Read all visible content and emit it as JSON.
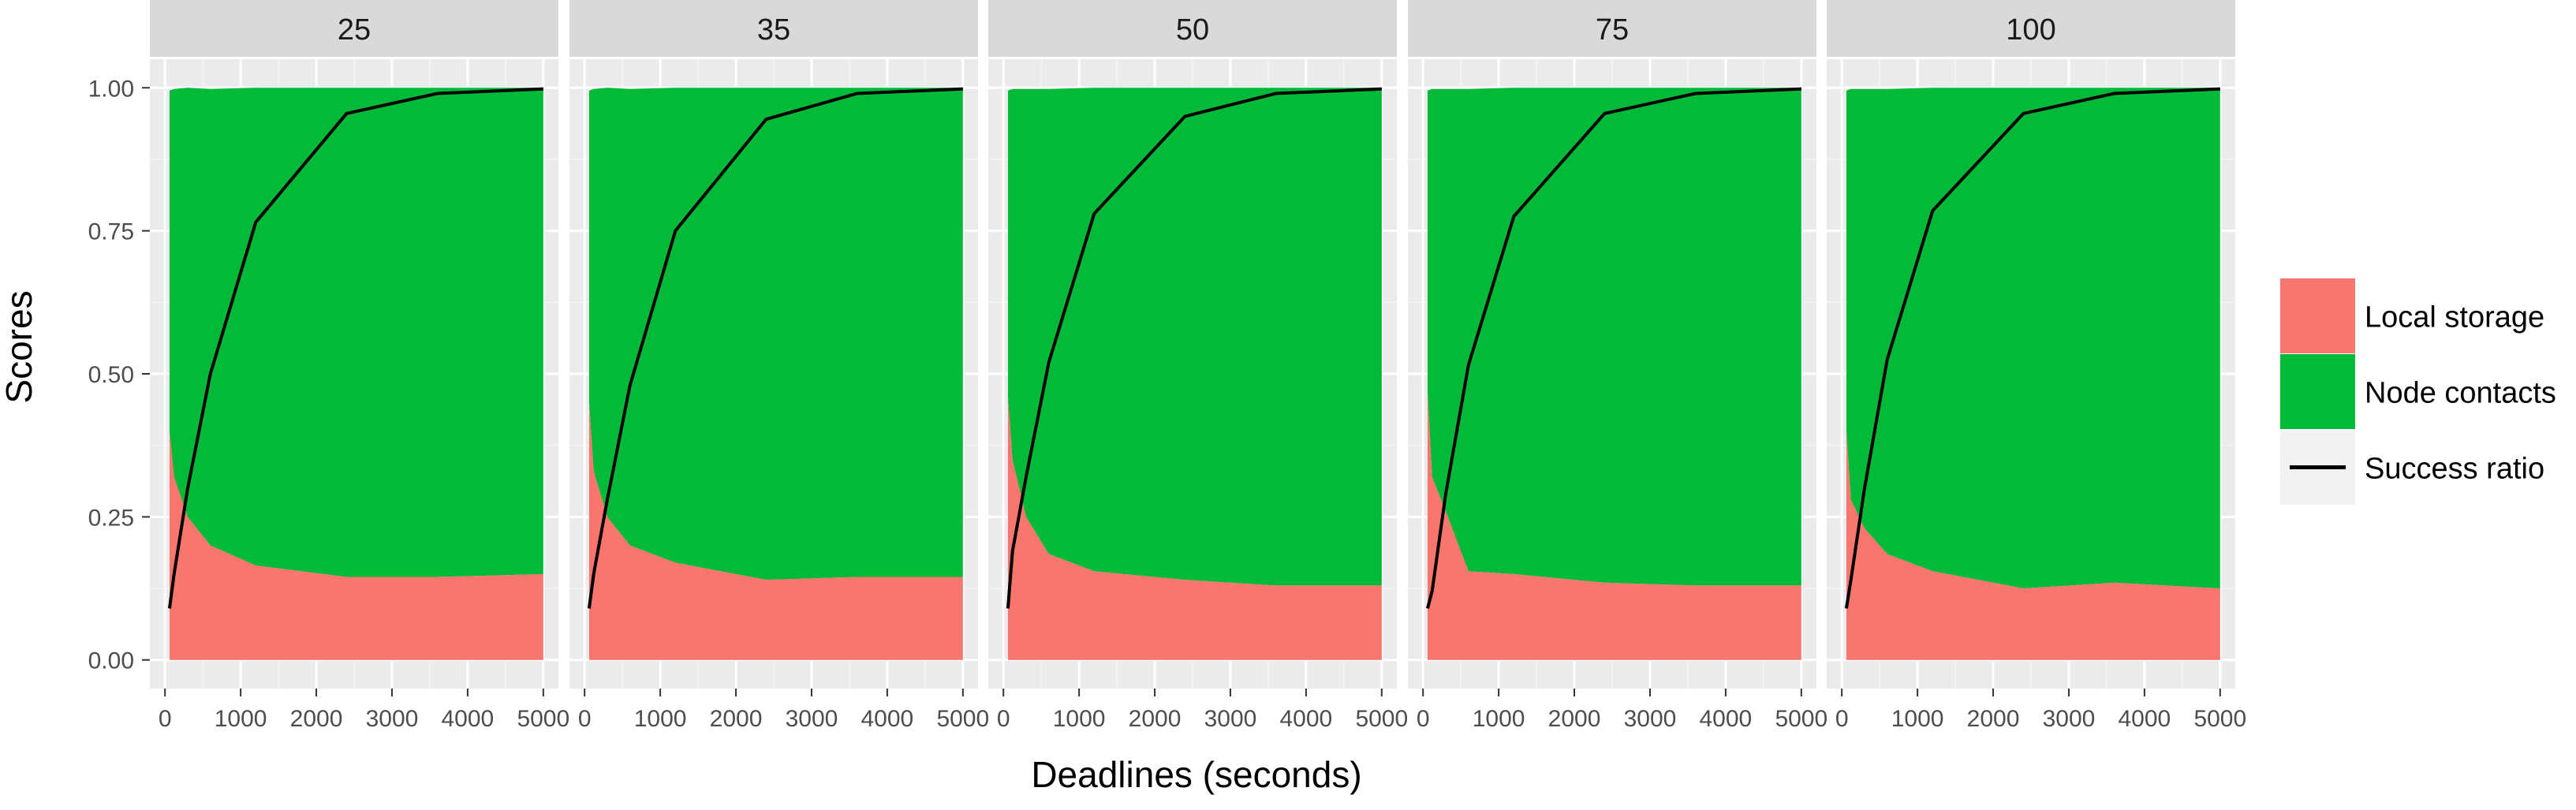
{
  "chart_data": {
    "type": "area",
    "title": "",
    "xlabel": "Deadlines (seconds)",
    "ylabel": "Scores",
    "xlim": [
      -200,
      5200
    ],
    "ylim": [
      -0.05,
      1.05
    ],
    "x_ticks": [
      0,
      1000,
      2000,
      3000,
      4000,
      5000
    ],
    "x_tick_labels": [
      "0",
      "1000",
      "2000",
      "3000",
      "4000",
      "5000"
    ],
    "y_ticks": [
      0,
      0.25,
      0.5,
      0.75,
      1.0
    ],
    "y_tick_labels": [
      "0.00",
      "0.25",
      "0.50",
      "0.75",
      "1.00"
    ],
    "grid": true,
    "legend_position": "right",
    "legend": [
      {
        "label": "Local storage",
        "key": "local",
        "kind": "fill",
        "color": "#F8766D"
      },
      {
        "label": "Node contacts",
        "key": "node",
        "kind": "fill",
        "color": "#00BA38"
      },
      {
        "label": "Success ratio",
        "key": "success",
        "kind": "line",
        "color": "#000000"
      }
    ],
    "colors": {
      "panel_bg": "#EBEBEB",
      "strip_bg": "#D9D9D9",
      "grid": "#FFFFFF",
      "tick_text": "#4D4D4D",
      "text": "#000000"
    },
    "x": [
      60,
      120,
      300,
      600,
      1200,
      2400,
      3600,
      5000
    ],
    "panels": [
      {
        "label": "25",
        "local": [
          0.4,
          0.32,
          0.25,
          0.2,
          0.165,
          0.145,
          0.145,
          0.15
        ],
        "total": [
          0.995,
          0.998,
          1.0,
          0.998,
          1.0,
          1.0,
          1.0,
          1.0
        ],
        "success": [
          0.09,
          0.15,
          0.3,
          0.5,
          0.765,
          0.955,
          0.99,
          0.998
        ]
      },
      {
        "label": "35",
        "local": [
          0.45,
          0.33,
          0.25,
          0.2,
          0.17,
          0.14,
          0.145,
          0.145
        ],
        "total": [
          0.995,
          0.998,
          1.0,
          0.998,
          1.0,
          1.0,
          1.0,
          1.0
        ],
        "success": [
          0.09,
          0.15,
          0.28,
          0.48,
          0.75,
          0.945,
          0.99,
          0.998
        ]
      },
      {
        "label": "50",
        "local": [
          0.46,
          0.35,
          0.25,
          0.185,
          0.155,
          0.14,
          0.13,
          0.13
        ],
        "total": [
          0.995,
          0.998,
          0.998,
          0.998,
          1.0,
          1.0,
          1.0,
          1.0
        ],
        "success": [
          0.09,
          0.19,
          0.32,
          0.52,
          0.78,
          0.95,
          0.99,
          0.998
        ]
      },
      {
        "label": "75",
        "local": [
          0.47,
          0.32,
          0.26,
          0.155,
          0.15,
          0.135,
          0.13,
          0.13
        ],
        "total": [
          0.995,
          0.998,
          0.998,
          0.998,
          1.0,
          1.0,
          1.0,
          1.0
        ],
        "success": [
          0.09,
          0.12,
          0.29,
          0.515,
          0.775,
          0.955,
          0.99,
          0.998
        ]
      },
      {
        "label": "100",
        "local": [
          0.4,
          0.28,
          0.23,
          0.185,
          0.155,
          0.125,
          0.135,
          0.125
        ],
        "total": [
          0.995,
          0.998,
          0.998,
          0.998,
          1.0,
          1.0,
          1.0,
          1.0
        ],
        "success": [
          0.09,
          0.14,
          0.3,
          0.525,
          0.785,
          0.955,
          0.99,
          0.998
        ]
      }
    ]
  }
}
